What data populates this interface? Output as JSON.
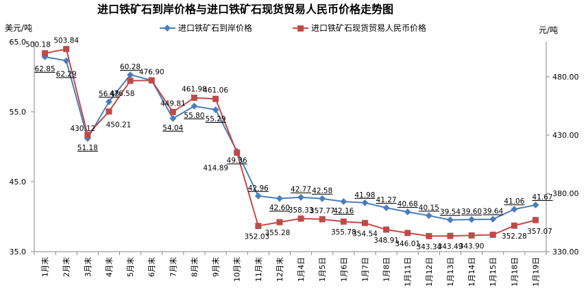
{
  "chart_data": {
    "type": "line",
    "title": "进口铁矿石到岸价格与进口铁矿石现货贸易人民币价格走势图",
    "ylabel_left": "美元/吨",
    "ylabel_right": "元/吨",
    "ylim_left": [
      35.0,
      65.0
    ],
    "ylim_right": [
      330.0,
      510.0
    ],
    "yticks_left": [
      "65.0",
      "55.0",
      "45.0",
      "35.0"
    ],
    "yticks_right": [
      "480.00",
      "430.00",
      "380.00",
      "330.00"
    ],
    "grid": false,
    "legend_position": "top",
    "categories": [
      "1月末",
      "2月末",
      "3月末",
      "4月末",
      "5月末",
      "6月末",
      "7月末",
      "8月末",
      "9月末",
      "10月末",
      "11月末",
      "12月末",
      "1月4日",
      "1月5日",
      "1月6日",
      "1月7日",
      "1月8日",
      "1月11日",
      "1月12日",
      "1月13日",
      "1月14日",
      "1月15日",
      "1月18日",
      "1月19日"
    ],
    "series": [
      {
        "name": "进口铁矿石到岸价格",
        "axis": "left",
        "color": "#4a7ebb",
        "marker": "diamond",
        "values": [
          62.85,
          62.29,
          51.18,
          56.43,
          60.28,
          59.5,
          54.04,
          55.8,
          55.29,
          49.36,
          42.96,
          42.6,
          42.77,
          42.58,
          42.16,
          41.98,
          41.27,
          40.68,
          40.15,
          39.54,
          39.6,
          39.64,
          41.06,
          41.67
        ],
        "labels": [
          "62.85",
          "62.29",
          "51.18",
          "56.43",
          "60.28",
          "",
          "54.04",
          "55.80",
          "55.29",
          "49.36",
          "42.96",
          "42.60",
          "42.77",
          "42.58",
          "42.16",
          "41.98",
          "41.27",
          "40.68",
          "40.15",
          "39.54",
          "39.60",
          "39.64",
          "41.06",
          "41.67"
        ]
      },
      {
        "name": "进口铁矿石现货贸易人民币价格",
        "axis": "right",
        "color": "#be4b48",
        "marker": "square",
        "values": [
          500.18,
          503.84,
          430.12,
          450.21,
          476.58,
          476.9,
          449.81,
          461.98,
          461.06,
          414.89,
          352.03,
          355.28,
          358.33,
          357.77,
          355.78,
          354.54,
          348.91,
          346.01,
          343.34,
          343.49,
          343.9,
          344.5,
          352.28,
          357.07
        ],
        "labels": [
          "500.18",
          "503.84",
          "430.12",
          "450.21",
          "476.58",
          "476.90",
          "449.81",
          "461.98",
          "461.06",
          "414.89",
          "352.03",
          "355.28",
          "358.33",
          "357.77",
          "355.78",
          "354.54",
          "348.91",
          "346.01",
          "343.34",
          "343.49",
          "343.90",
          "",
          "352.28",
          "357.07"
        ]
      }
    ]
  }
}
